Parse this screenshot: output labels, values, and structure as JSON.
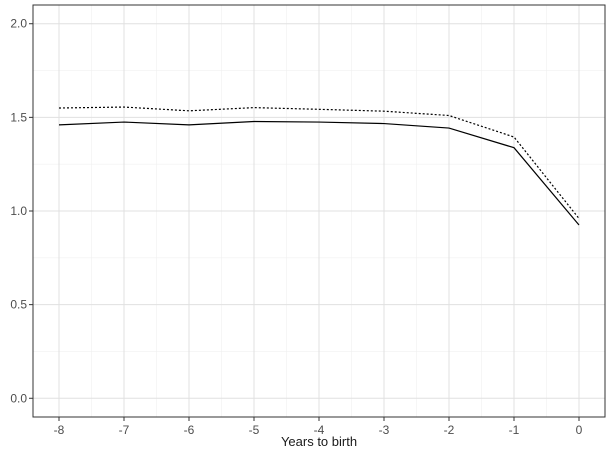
{
  "chart_data": {
    "type": "line",
    "title": "",
    "xlabel": "Years to birth",
    "ylabel": "",
    "x": [
      -8,
      -7,
      -6,
      -5,
      -4,
      -3,
      -2,
      -1,
      0
    ],
    "xlim": [
      -8.4,
      0.4
    ],
    "ylim": [
      -0.1,
      2.1
    ],
    "x_ticks": [
      -8,
      -7,
      -6,
      -5,
      -4,
      -3,
      -2,
      -1,
      0
    ],
    "x_tick_labels": [
      "-8",
      "-7",
      "-6",
      "-5",
      "-4",
      "-3",
      "-2",
      "-1",
      "0"
    ],
    "y_ticks": [
      0.0,
      0.5,
      1.0,
      1.5,
      2.0
    ],
    "y_tick_labels": [
      "0.0",
      "0.5",
      "1.0",
      "1.5",
      "2.0"
    ],
    "grid": true,
    "series": [
      {
        "line_style": "solid",
        "values": [
          1.46,
          1.475,
          1.46,
          1.478,
          1.475,
          1.467,
          1.443,
          1.338,
          0.925
        ]
      },
      {
        "line_style": "dotted",
        "values": [
          1.55,
          1.555,
          1.535,
          1.552,
          1.543,
          1.533,
          1.51,
          1.395,
          0.96
        ]
      }
    ]
  }
}
